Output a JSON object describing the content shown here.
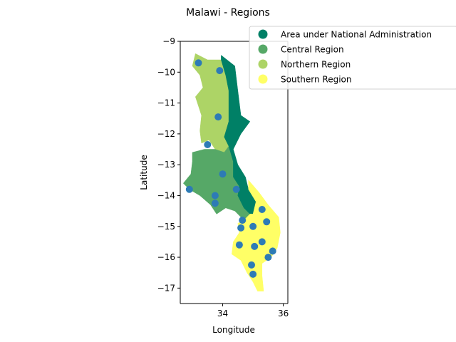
{
  "title": "Malawi - Regions",
  "xlabel": "Longitude",
  "ylabel": "Latitude",
  "xticks": [
    {
      "value": 34,
      "label": "34"
    },
    {
      "value": 36,
      "label": "36"
    }
  ],
  "yticks": [
    {
      "value": -9,
      "label": "−9"
    },
    {
      "value": -10,
      "label": "−10"
    },
    {
      "value": -11,
      "label": "−11"
    },
    {
      "value": -12,
      "label": "−12"
    },
    {
      "value": -13,
      "label": "−13"
    },
    {
      "value": -14,
      "label": "−14"
    },
    {
      "value": -15,
      "label": "−15"
    },
    {
      "value": -16,
      "label": "−16"
    },
    {
      "value": -17,
      "label": "−17"
    }
  ],
  "xlim": [
    32.6,
    36.15
  ],
  "ylim": [
    -17.5,
    -9.0
  ],
  "legend": {
    "placement": "top-right",
    "entries": [
      {
        "label": "Area under National Administration",
        "color": "#008066"
      },
      {
        "label": "Central Region",
        "color": "#56a867"
      },
      {
        "label": "Northern Region",
        "color": "#add466"
      },
      {
        "label": "Southern Region",
        "color": "#ffff66"
      }
    ]
  },
  "chart_data": {
    "type": "scatter",
    "title": "Malawi - Regions",
    "xlabel": "Longitude",
    "ylabel": "Latitude",
    "xlim": [
      32.6,
      36.15
    ],
    "ylim": [
      -17.5,
      -9.0
    ],
    "point_color": "#2d7bb6",
    "regions": [
      {
        "name": "Northern Region",
        "color": "#add466",
        "polygon": [
          [
            33.1,
            -9.4
          ],
          [
            33.5,
            -9.6
          ],
          [
            33.95,
            -9.6
          ],
          [
            34.1,
            -10.1
          ],
          [
            34.2,
            -10.6
          ],
          [
            34.2,
            -11.6
          ],
          [
            34.05,
            -12.1
          ],
          [
            34.2,
            -12.4
          ],
          [
            34.05,
            -12.6
          ],
          [
            33.75,
            -12.5
          ],
          [
            33.55,
            -12.2
          ],
          [
            33.3,
            -12.3
          ],
          [
            33.25,
            -11.9
          ],
          [
            33.3,
            -11.4
          ],
          [
            33.1,
            -10.8
          ],
          [
            33.35,
            -10.5
          ],
          [
            33.25,
            -10.1
          ],
          [
            33.0,
            -9.8
          ]
        ]
      },
      {
        "name": "Central Region",
        "color": "#56a867",
        "polygon": [
          [
            33.0,
            -12.6
          ],
          [
            33.4,
            -12.5
          ],
          [
            33.75,
            -12.5
          ],
          [
            34.05,
            -12.6
          ],
          [
            34.2,
            -12.4
          ],
          [
            34.35,
            -12.9
          ],
          [
            34.35,
            -13.4
          ],
          [
            34.55,
            -13.7
          ],
          [
            34.5,
            -14.0
          ],
          [
            34.7,
            -14.4
          ],
          [
            34.9,
            -14.6
          ],
          [
            34.7,
            -14.8
          ],
          [
            34.4,
            -14.5
          ],
          [
            34.1,
            -14.4
          ],
          [
            33.8,
            -14.6
          ],
          [
            33.6,
            -14.3
          ],
          [
            33.25,
            -14.0
          ],
          [
            32.9,
            -13.8
          ],
          [
            32.7,
            -13.6
          ],
          [
            32.95,
            -13.3
          ],
          [
            33.0,
            -12.9
          ]
        ]
      },
      {
        "name": "Area under National Administration",
        "color": "#008066",
        "polygon": [
          [
            33.95,
            -9.45
          ],
          [
            34.4,
            -9.8
          ],
          [
            34.5,
            -10.6
          ],
          [
            34.6,
            -11.4
          ],
          [
            34.9,
            -11.6
          ],
          [
            34.6,
            -12.0
          ],
          [
            34.35,
            -12.5
          ],
          [
            34.5,
            -13.0
          ],
          [
            34.75,
            -13.4
          ],
          [
            34.85,
            -13.8
          ],
          [
            35.1,
            -14.2
          ],
          [
            35.0,
            -14.6
          ],
          [
            34.9,
            -14.6
          ],
          [
            34.7,
            -14.4
          ],
          [
            34.5,
            -14.0
          ],
          [
            34.55,
            -13.7
          ],
          [
            34.35,
            -13.4
          ],
          [
            34.35,
            -12.9
          ],
          [
            34.2,
            -12.4
          ],
          [
            34.05,
            -12.1
          ],
          [
            34.2,
            -11.6
          ],
          [
            34.2,
            -10.6
          ],
          [
            34.1,
            -10.1
          ],
          [
            33.95,
            -9.6
          ]
        ]
      },
      {
        "name": "Southern Region",
        "color": "#ffff66",
        "polygon": [
          [
            34.85,
            -13.5
          ],
          [
            35.2,
            -13.9
          ],
          [
            35.5,
            -14.3
          ],
          [
            35.85,
            -14.7
          ],
          [
            35.9,
            -15.2
          ],
          [
            35.8,
            -15.7
          ],
          [
            35.6,
            -16.0
          ],
          [
            35.3,
            -16.2
          ],
          [
            35.3,
            -16.6
          ],
          [
            35.35,
            -17.1
          ],
          [
            35.15,
            -17.1
          ],
          [
            35.0,
            -16.8
          ],
          [
            34.8,
            -16.5
          ],
          [
            34.6,
            -16.1
          ],
          [
            34.3,
            -15.9
          ],
          [
            34.35,
            -15.5
          ],
          [
            34.55,
            -15.2
          ],
          [
            34.5,
            -14.9
          ],
          [
            34.7,
            -14.8
          ],
          [
            34.9,
            -14.6
          ],
          [
            35.0,
            -14.6
          ],
          [
            35.1,
            -14.2
          ],
          [
            34.85,
            -13.8
          ]
        ]
      }
    ],
    "points": [
      {
        "x": 33.2,
        "y": -9.7
      },
      {
        "x": 33.9,
        "y": -9.95
      },
      {
        "x": 33.85,
        "y": -11.45
      },
      {
        "x": 33.5,
        "y": -12.35
      },
      {
        "x": 34.0,
        "y": -13.3
      },
      {
        "x": 33.75,
        "y": -14.0
      },
      {
        "x": 33.75,
        "y": -14.25
      },
      {
        "x": 32.9,
        "y": -13.8
      },
      {
        "x": 34.45,
        "y": -13.8
      },
      {
        "x": 35.3,
        "y": -14.45
      },
      {
        "x": 34.65,
        "y": -14.8
      },
      {
        "x": 35.45,
        "y": -14.85
      },
      {
        "x": 35.0,
        "y": -15.0
      },
      {
        "x": 34.6,
        "y": -15.05
      },
      {
        "x": 34.55,
        "y": -15.6
      },
      {
        "x": 35.3,
        "y": -15.5
      },
      {
        "x": 35.05,
        "y": -15.65
      },
      {
        "x": 35.65,
        "y": -15.8
      },
      {
        "x": 35.5,
        "y": -16.0
      },
      {
        "x": 34.95,
        "y": -16.25
      },
      {
        "x": 35.0,
        "y": -16.55
      }
    ]
  }
}
